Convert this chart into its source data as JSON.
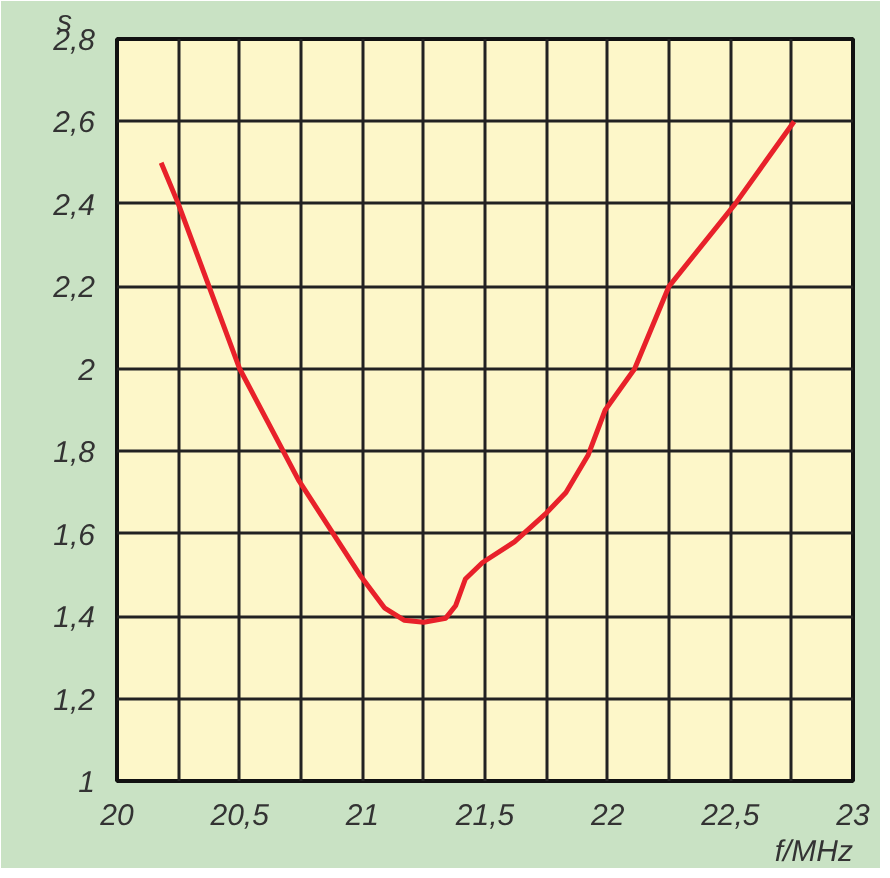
{
  "chart_data": {
    "type": "line",
    "xlabel": "f/MHz",
    "ylabel": "s",
    "series": [
      {
        "color": "#e8212a",
        "x": [
          20.18,
          20.25,
          20.5,
          20.74,
          20.99,
          21.09,
          21.17,
          21.25,
          21.34,
          21.38,
          21.42,
          21.49,
          21.62,
          21.75,
          21.83,
          21.92,
          21.99,
          22.11,
          22.25,
          22.52,
          22.76
        ],
        "values": [
          2.5,
          2.4,
          2.0,
          1.73,
          1.5,
          1.42,
          1.39,
          1.385,
          1.395,
          1.425,
          1.49,
          1.53,
          1.58,
          1.65,
          1.7,
          1.79,
          1.9,
          2.0,
          2.2,
          2.4,
          2.6
        ]
      }
    ],
    "xlim": [
      20,
      23
    ],
    "ylim": [
      1,
      2.8
    ],
    "xticks": [
      20,
      {
        "value": 20.25,
        "label": null
      },
      {
        "value": 20.5,
        "label": "20,5"
      },
      {
        "value": 20.75,
        "label": null
      },
      21,
      {
        "value": 21.25,
        "label": null
      },
      {
        "value": 21.5,
        "label": "21,5"
      },
      {
        "value": 21.75,
        "label": null
      },
      22,
      {
        "value": 22.25,
        "label": null
      },
      {
        "value": 22.5,
        "label": "22,5"
      },
      {
        "value": 22.75,
        "label": null
      },
      23
    ],
    "yticks": [
      1,
      {
        "value": 1.2,
        "label": "1,2"
      },
      {
        "value": 1.4,
        "label": "1,4"
      },
      {
        "value": 1.6,
        "label": "1,6"
      },
      {
        "value": 1.8,
        "label": "1,8"
      },
      2,
      {
        "value": 2.2,
        "label": "2,2"
      },
      {
        "value": 2.4,
        "label": "2,4"
      },
      {
        "value": 2.6,
        "label": "2,6"
      },
      {
        "value": 2.8,
        "label": "2,8"
      }
    ],
    "grid": true,
    "marker": "none",
    "line_style": "solid"
  }
}
